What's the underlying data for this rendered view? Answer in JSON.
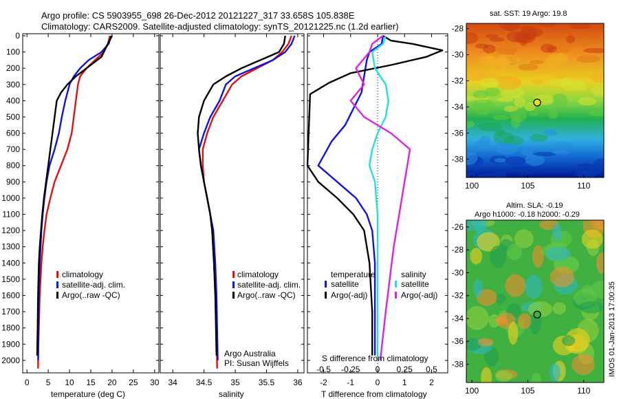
{
  "header": {
    "title_line1": "Argo profile: CS 5903955_698 26-Dec-2012 20121227_317 33.658S 105.838E",
    "title_line2": "Climatology: CARS2009. Satellite-adjusted climatology: synTS_20121225.nc (1.2d earlier)"
  },
  "colors": {
    "climatology": "#e01010",
    "satellite_adj": "#1010e0",
    "argo": "#000000",
    "satellite_salinity": "#20e0e0",
    "argo_salinity_diff": "#e020e0"
  },
  "chart_data": [
    {
      "id": "temperature",
      "type": "line",
      "xlabel": "temperature (deg C)",
      "ylabel": "",
      "xlim": [
        -1,
        31
      ],
      "ylim": [
        2060,
        0
      ],
      "y_inverted": true,
      "xticks": [
        0,
        5,
        10,
        15,
        20,
        25,
        30
      ],
      "yticks": [
        0,
        100,
        200,
        300,
        400,
        500,
        600,
        700,
        800,
        900,
        1000,
        1100,
        1200,
        1300,
        1400,
        1500,
        1600,
        1700,
        1800,
        1900,
        2000
      ],
      "legend": {
        "placement": "lower-middle",
        "entries": [
          "climatology",
          "satellite-adj. clim.",
          "Argo(..raw -QC)"
        ]
      },
      "series": [
        {
          "name": "climatology",
          "color_key": "climatology",
          "x": [
            19.5,
            19,
            18,
            16,
            14,
            12.5,
            12,
            11.5,
            11,
            10.5,
            9.5,
            8,
            6.5,
            5.5,
            4.6,
            4.1,
            3.7,
            3.4,
            3.2,
            3,
            2.9,
            2.7,
            2.6
          ],
          "y": [
            0,
            50,
            100,
            150,
            200,
            250,
            300,
            400,
            500,
            600,
            700,
            800,
            900,
            1000,
            1100,
            1200,
            1300,
            1400,
            1500,
            1600,
            1700,
            1900,
            2050
          ]
        },
        {
          "name": "satellite-adj. clim.",
          "color_key": "satellite_adj",
          "x": [
            19.8,
            19.2,
            17.5,
            14.5,
            12.5,
            11,
            10,
            9,
            8.2,
            7.5,
            6.5,
            5.3,
            4.6,
            4.1,
            3.7,
            3.4,
            3.2,
            3,
            2.8,
            2.7,
            2.6
          ],
          "y": [
            0,
            50,
            100,
            150,
            200,
            250,
            300,
            400,
            500,
            600,
            700,
            800,
            900,
            1000,
            1100,
            1200,
            1300,
            1400,
            1600,
            1800,
            2000
          ]
        },
        {
          "name": "Argo(..raw -QC)",
          "color_key": "argo",
          "x": [
            20,
            19,
            17.5,
            14,
            11.5,
            9.5,
            8,
            7,
            6.5,
            6,
            5.5,
            5,
            4.5,
            4,
            3.6,
            3.3,
            3,
            2.8,
            2.6,
            2.5,
            2.4
          ],
          "y": [
            0,
            50,
            130,
            200,
            250,
            300,
            350,
            400,
            500,
            600,
            700,
            800,
            900,
            1000,
            1100,
            1200,
            1300,
            1400,
            1600,
            1800,
            1970
          ]
        }
      ]
    },
    {
      "id": "salinity",
      "type": "line",
      "xlabel": "salinity",
      "ylabel": "",
      "xlim": [
        33.8,
        36.1
      ],
      "ylim": [
        2060,
        0
      ],
      "y_inverted": true,
      "xticks": [
        34,
        34.5,
        35,
        35.5,
        36
      ],
      "legend": {
        "placement": "lower-middle",
        "entries": [
          "climatology",
          "satellite-adj. clim.",
          "Argo(..raw -QC)"
        ]
      },
      "annotations": [
        "Argo Australia",
        "PI: Susan Wijffels"
      ],
      "series": [
        {
          "name": "climatology",
          "color_key": "climatology",
          "x": [
            35.9,
            35.85,
            35.75,
            35.6,
            35.35,
            35.1,
            34.95,
            34.8,
            34.65,
            34.55,
            34.48,
            34.48,
            34.5,
            34.55,
            34.6,
            34.63,
            34.66,
            34.68,
            34.7,
            34.71
          ],
          "y": [
            0,
            50,
            100,
            150,
            200,
            250,
            300,
            400,
            500,
            600,
            700,
            800,
            900,
            1000,
            1100,
            1200,
            1400,
            1600,
            1800,
            2050
          ]
        },
        {
          "name": "satellite-adj. clim.",
          "color_key": "satellite_adj",
          "x": [
            35.95,
            35.9,
            35.8,
            35.6,
            35.3,
            35,
            34.85,
            34.75,
            34.6,
            34.5,
            34.42,
            34.45,
            34.5,
            34.55,
            34.6,
            34.65,
            34.68,
            34.7,
            34.72
          ],
          "y": [
            0,
            50,
            100,
            150,
            200,
            250,
            300,
            400,
            500,
            600,
            700,
            800,
            900,
            1000,
            1100,
            1200,
            1400,
            1600,
            2000
          ]
        },
        {
          "name": "Argo(..raw -QC)",
          "color_key": "argo",
          "x": [
            35.8,
            35.78,
            35.7,
            35.4,
            35.1,
            34.85,
            34.65,
            34.5,
            34.42,
            34.4,
            34.42,
            34.45,
            34.5,
            34.55,
            34.6,
            34.63,
            34.66,
            34.68,
            34.7
          ],
          "y": [
            0,
            50,
            100,
            150,
            200,
            250,
            300,
            400,
            500,
            600,
            700,
            800,
            900,
            1000,
            1100,
            1200,
            1400,
            1600,
            1970
          ]
        }
      ]
    },
    {
      "id": "difference",
      "type": "line",
      "xlabel": "T difference from climatology",
      "top_label": "S difference from climatology",
      "xlim": [
        -2.6,
        2.6
      ],
      "ylim": [
        2060,
        0
      ],
      "y_inverted": true,
      "xticks": [
        -2,
        -1,
        0,
        1,
        2
      ],
      "s_xticks": [
        "-0.5",
        "-0.25",
        "0",
        "0.25",
        "0.5"
      ],
      "s_xtick_positions": [
        -2,
        -1,
        0,
        1,
        2
      ],
      "zero_line": "dotted",
      "legend": {
        "placement": "lower-middle",
        "group_titles": [
          "temperature",
          "salinity"
        ],
        "entries": [
          "satellite",
          "Argo(-adj)",
          "satellite",
          "Argo(-adj)"
        ]
      },
      "series": [
        {
          "name": "temperature satellite",
          "color_key": "satellite_adj",
          "x": [
            0.2,
            0.15,
            -0.3,
            -0.4,
            -0.5,
            -0.6,
            -0.9,
            -1.2,
            -1.7,
            -2.2,
            -1.5,
            -0.8,
            -0.4,
            -0.2,
            -0.1,
            -0.1,
            -0.1
          ],
          "y": [
            0,
            50,
            100,
            150,
            250,
            350,
            450,
            550,
            650,
            800,
            900,
            1000,
            1100,
            1200,
            1400,
            1700,
            1970
          ]
        },
        {
          "name": "temperature Argo(-adj)",
          "color_key": "argo",
          "x": [
            0.2,
            0.5,
            1.3,
            2.4,
            1.8,
            0.5,
            -1,
            -1.8,
            -2.5,
            -2.6,
            -2.2,
            -1.5,
            -0.9,
            -0.5,
            -0.3,
            -0.2,
            -0.2
          ],
          "y": [
            0,
            30,
            50,
            90,
            130,
            180,
            230,
            290,
            360,
            800,
            900,
            1000,
            1100,
            1200,
            1400,
            1700,
            1970
          ]
        },
        {
          "name": "salinity satellite",
          "color_key": "satellite_salinity",
          "x": [
            0.3,
            0.2,
            -0.2,
            -0.1,
            0.3,
            0.4,
            0.3,
            0,
            -0.2,
            -0.3,
            -0.1,
            0,
            0,
            0,
            0
          ],
          "y": [
            0,
            50,
            100,
            200,
            300,
            400,
            500,
            600,
            700,
            800,
            900,
            1100,
            1300,
            1700,
            2000
          ]
        },
        {
          "name": "salinity Argo(-adj)",
          "color_key": "argo_salinity_diff",
          "x": [
            0.2,
            -0.2,
            -0.3,
            -0.8,
            -0.5,
            -1,
            -0.5,
            0.5,
            1.2,
            1.1,
            1,
            0.8,
            0.6,
            0.3,
            0.1
          ],
          "y": [
            0,
            50,
            100,
            200,
            300,
            400,
            500,
            600,
            700,
            800,
            900,
            1100,
            1300,
            1700,
            2000
          ]
        }
      ]
    },
    {
      "id": "sst_map",
      "type": "heatmap",
      "title": "sat. SST: 19 Argo: 19.8",
      "xticks": [
        100,
        105,
        110
      ],
      "yticks": [
        -28,
        -30,
        -32,
        -34,
        -36,
        -38
      ],
      "marker": {
        "lon": 105.838,
        "lat": -33.658
      }
    },
    {
      "id": "sla_map",
      "type": "heatmap",
      "title": "Altim. SLA: -0.19",
      "subtitle": "Argo h1000: -0.18 h2000: -0.29",
      "xticks": [
        100,
        105,
        110
      ],
      "yticks": [
        -26,
        -28,
        -30,
        -32,
        -34,
        -36,
        -38
      ],
      "marker": {
        "lon": 105.838,
        "lat": -33.658
      }
    }
  ],
  "credit": "IMOS 01-Jan-2013 17:00:35"
}
